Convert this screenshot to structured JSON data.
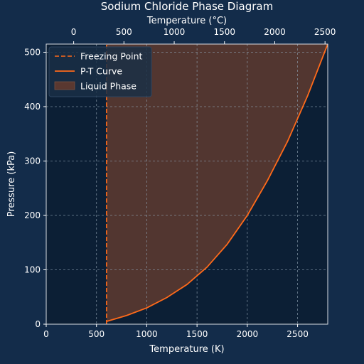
{
  "chart_data": {
    "type": "line",
    "title": "Sodium Chloride Phase Diagram",
    "xlabel": "Temperature (K)",
    "ylabel": "Pressure (kPa)",
    "x2label": "Temperature (°C)",
    "xlim": [
      0,
      2800
    ],
    "ylim": [
      0,
      515
    ],
    "x2lim": [
      -273,
      2527
    ],
    "xticks": [
      0,
      500,
      1000,
      1500,
      2000,
      2500
    ],
    "yticks": [
      0,
      100,
      200,
      300,
      400,
      500
    ],
    "x2ticks": [
      0,
      500,
      1000,
      1500,
      2000,
      2500
    ],
    "grid": true,
    "legend_position": "top-left",
    "freezing_point": {
      "name": "Freezing Point",
      "x": 600,
      "y_range": [
        0,
        515
      ]
    },
    "series": [
      {
        "name": "P-T Curve",
        "x": [
          600,
          800,
          1000,
          1200,
          1400,
          1600,
          1800,
          2000,
          2200,
          2400,
          2600,
          2800
        ],
        "y": [
          5,
          16,
          30,
          49,
          73,
          105,
          147,
          200,
          264,
          336,
          420,
          515
        ]
      }
    ],
    "fill": {
      "name": "Liquid Phase",
      "between": [
        "Freezing Point",
        "P-T Curve"
      ],
      "upper_y": 515
    },
    "colors": {
      "curve": "#ff6a1a",
      "fill": "#5a3830",
      "axes_background": "#0c1f35",
      "figure_background": "#132c4a",
      "grid": "#8fa0b0",
      "legend_background": "#1a2f45"
    }
  }
}
